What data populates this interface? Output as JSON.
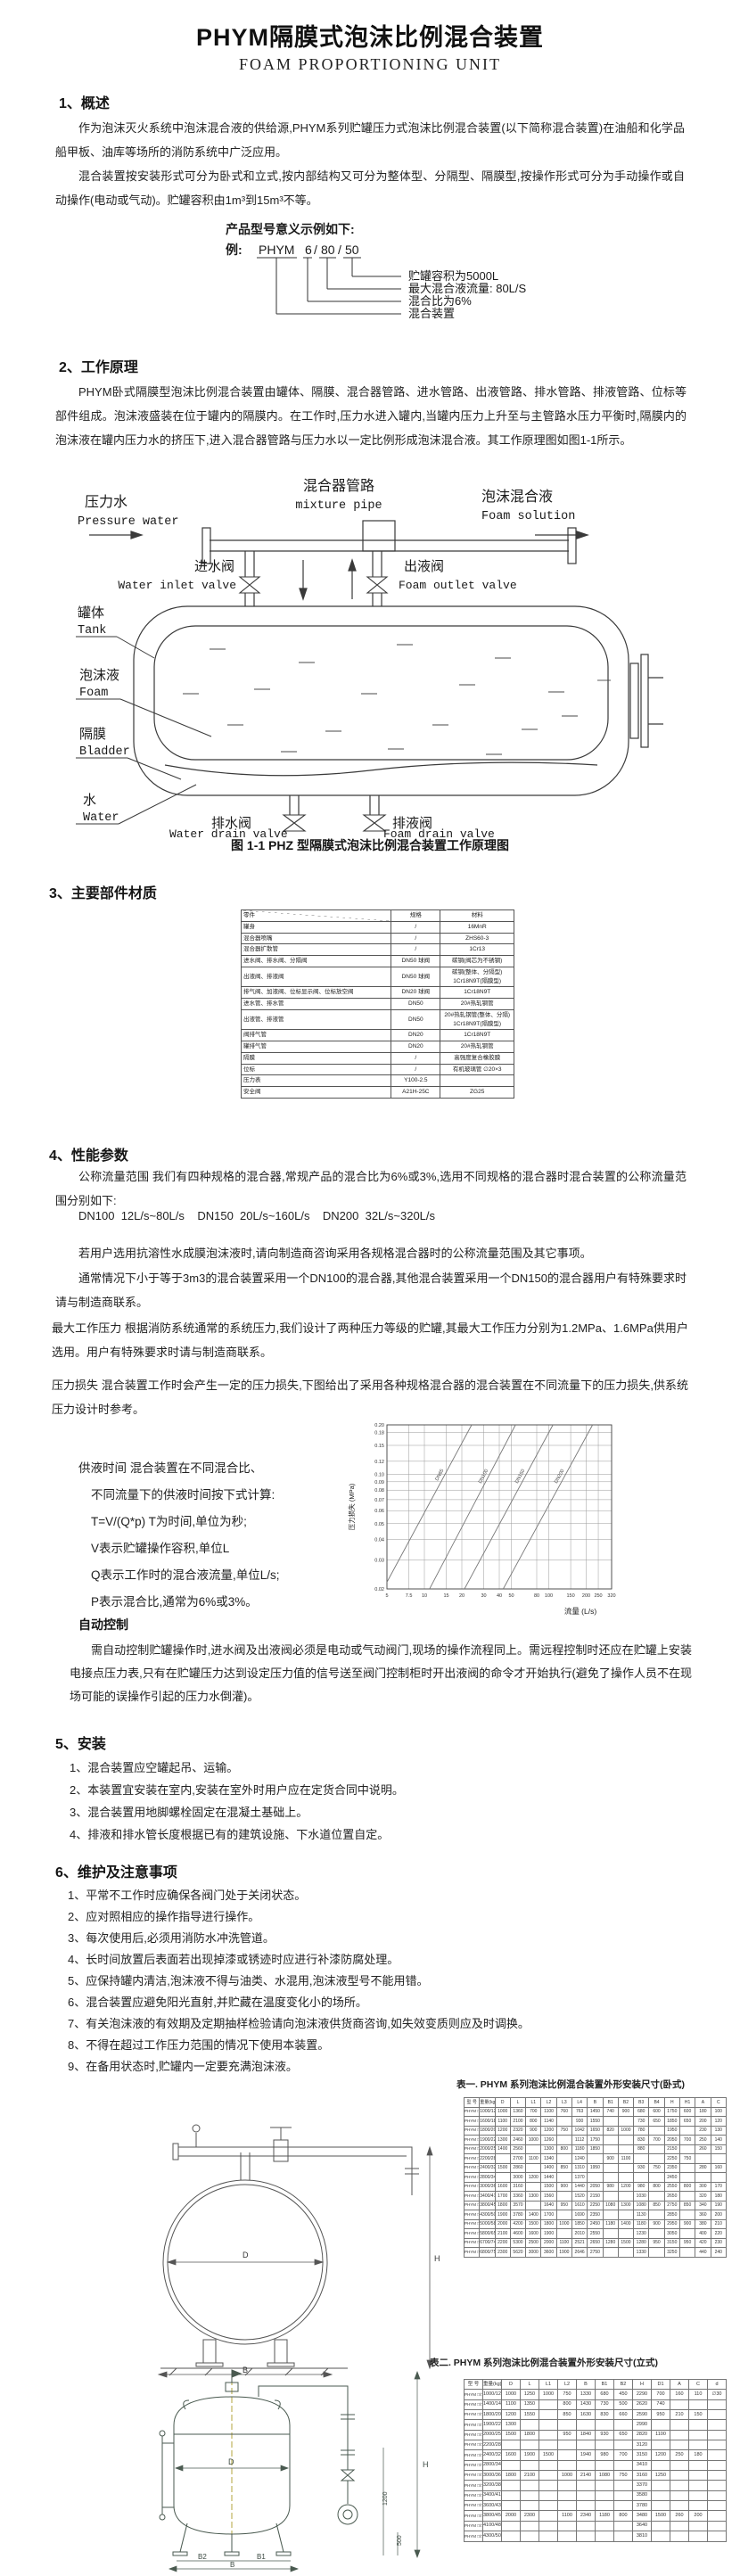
{
  "page": {
    "title": "PHYM隔膜式泡沫比例混合装置",
    "subtitle": "FOAM PROPORTIONING UNIT"
  },
  "overview": {
    "heading": "1、概述",
    "para1": "作为泡沫灭火系统中泡沫混合液的供给源,PHYM系列贮罐压力式泡沫比例混合装置(以下简称混合装置)在油船和化学品船甲板、油库等场所的消防系统中广泛应用。",
    "para2": "混合装置按安装形式可分为卧式和立式,按内部结构又可分为整体型、分隔型、隔膜型,按操作形式可分为手动操作或自动操作(电动或气动)。贮罐容积由1m³到15m³不等。"
  },
  "model_example": {
    "intro": "产品型号意义示例如下:",
    "example_prefix": "例:",
    "code_parts": [
      "PHYM",
      "6",
      "80",
      "50"
    ],
    "slash": "/",
    "labels": [
      "贮罐容积为5000L",
      "最大混合液流量: 80L/S",
      "混合比为6%",
      "混合装置"
    ]
  },
  "working_principle": {
    "heading": "2、工作原理",
    "para": "PHYM卧式隔膜型泡沫比例混合装置由罐体、隔膜、混合器管路、进水管路、出液管路、排水管路、排液管路、位标等部件组成。泡沫液盛装在位于罐内的隔膜内。在工作时,压力水进入罐内,当罐内压力上升至与主管路水压力平衡时,隔膜内的泡沫液在罐内压力水的挤压下,进入混合器管路与压力水以一定比例形成泡沫混合液。其工作原理图如图1-1所示。",
    "caption": "图 1-1 PHZ 型隔膜式泡沫比例混合装置工作原理图",
    "diagram": {
      "mixture_pipe_cn": "混合器管路",
      "mixture_pipe_en": "mixture pipe",
      "pressure_water_cn": "压力水",
      "pressure_water_en": "Pressure water",
      "foam_solution_cn": "泡沫混合液",
      "foam_solution_en": "Foam solution",
      "water_inlet_cn": "进水阀",
      "water_inlet_en": "Water inlet valve",
      "foam_outlet_cn": "出液阀",
      "foam_outlet_en": "Foam outlet valve",
      "tank_cn": "罐体",
      "tank_en": "Tank",
      "foam_cn": "泡沫液",
      "foam_en": "Foam",
      "bladder_cn": "隔膜",
      "bladder_en": "Bladder",
      "water_cn": "水",
      "water_en": "Water",
      "water_drain_cn": "排水阀",
      "water_drain_en": "Water drain valve",
      "foam_drain_cn": "排液阀",
      "foam_drain_en": "Foam drain valve"
    }
  },
  "materials": {
    "heading": "3、主要部件材质",
    "table": {
      "headers": [
        "零件",
        "规格",
        "材料"
      ],
      "rows": [
        [
          "罐身",
          "/",
          "16MnR"
        ],
        [
          "混合器喷嘴",
          "/",
          "ZHS60-3"
        ],
        [
          "混合器扩散管",
          "/",
          "1Cr13"
        ],
        [
          "进水阀、排水阀、分隔阀",
          "DN50 球阀",
          "碳钢(阀芯为不锈钢)"
        ],
        [
          "出液阀、排液阀",
          "DN50 球阀",
          "碳钢(整体、分隔型) 1Cr18N9T(隔膜型)"
        ],
        [
          "排气阀、加液阀、位标显示阀、位标放空阀",
          "DN20 球阀",
          "1Cr18N9T"
        ],
        [
          "进水管、排水管",
          "DN50",
          "20#热轧钢管"
        ],
        [
          "出液管、排液管",
          "DN50",
          "20#热轧钢管(整体、分隔) 1Cr18N9T(隔膜型)"
        ],
        [
          "阀排气管",
          "DN20",
          "1Cr18N9T"
        ],
        [
          "罐排气管",
          "DN20",
          "20#热轧钢管"
        ],
        [
          "隔膜",
          "/",
          "高强度复合橡胶膜"
        ],
        [
          "位标",
          "/",
          "有机玻璃管 ∅20×3"
        ],
        [
          "压力表",
          "Y100-2.5",
          ""
        ],
        [
          "安全阀",
          "A21H-25C",
          "ZG25"
        ]
      ]
    }
  },
  "performance": {
    "heading": "4、性能参数",
    "para_flow": "公称流量范围  我们有四种规格的混合器,常规产品的混合比为6%或3%,选用不同规格的混合器时混合装置的公称流量范围分别如下:",
    "flow_specs": "DN100  12L/s~80L/s    DN150  20L/s~160L/s    DN200  32L/s~320L/s",
    "para_note1": "若用户选用抗溶性水成膜泡沫液时,请向制造商咨询采用各规格混合器时的公称流量范围及其它事项。",
    "para_note2": "通常情况下小于等于3m3的混合装置采用一个DN100的混合器,其他混合装置采用一个DN150的混合器用户有特殊要求时请与制造商联系。",
    "para_pressure": "最大工作压力 根据消防系统通常的系统压力,我们设计了两种压力等级的贮罐,其最大工作压力分别为1.2MPa、1.6MPa供用户选用。用户有特殊要求时请与制造商联系。",
    "para_loss": "压力损失  混合装置工作时会产生一定的压力损失,下图给出了采用各种规格混合器的混合装置在不同流量下的压力损失,供系统压力设计时参考。",
    "supply_time": [
      "供液时间  混合装置在不同混合比、",
      "不同流量下的供液时间按下式计算:",
      "T=V/(Q*p)    T为时间,单位为秒;",
      "V表示贮罐操作容积,单位L",
      "Q表示工作时的混合液流量,单位L/s;",
      "P表示混合比,通常为6%或3%。"
    ],
    "auto_heading": "自动控制",
    "auto_para": "需自动控制贮罐操作时,进水阀及出液阀必须是电动或气动阀门,现场的操作流程同上。需远程控制时还应在贮罐上安装电接点压力表,只有在贮罐压力达到设定压力值的信号送至阀门控制柜时开出液阀的命令才开始执行(避免了操作人员不在现场可能的误操作引起的压力水倒灌)。"
  },
  "chart_data": {
    "type": "line",
    "title": "",
    "xlabel": "流量 (L/s)",
    "ylabel": "压力损失 (MPa)",
    "x_scale": "log",
    "y_scale": "log",
    "xlim": [
      5,
      320
    ],
    "ylim": [
      0.02,
      0.2
    ],
    "grid": true,
    "x_ticks": [
      5,
      7.5,
      10,
      15,
      20,
      30,
      40,
      50,
      80,
      100,
      150,
      200,
      250,
      320
    ],
    "y_ticks": [
      0.02,
      0.03,
      0.04,
      0.05,
      0.06,
      0.07,
      0.08,
      0.09,
      0.1,
      0.12,
      0.15,
      0.18,
      0.2
    ],
    "series": [
      {
        "name": "DN65",
        "x": [
          5,
          24
        ],
        "y": [
          0.022,
          0.2
        ]
      },
      {
        "name": "DN100",
        "x": [
          11,
          54
        ],
        "y": [
          0.02,
          0.2
        ]
      },
      {
        "name": "DN150",
        "x": [
          21,
          108
        ],
        "y": [
          0.02,
          0.2
        ]
      },
      {
        "name": "DN200",
        "x": [
          43,
          225
        ],
        "y": [
          0.02,
          0.2
        ]
      }
    ]
  },
  "installation": {
    "heading": "5、安装",
    "items": [
      "1、混合装置应空罐起吊、运输。",
      "2、本装置宜安装在室内,安装在室外时用户应在定货合同中说明。",
      "3、混合装置用地脚螺栓固定在混凝土基础上。",
      "4、排液和排水管长度根据已有的建筑设施、下水道位置自定。"
    ]
  },
  "maintenance": {
    "heading": "6、维护及注意事项",
    "items": [
      "1、平常不工作时应确保各阀门处于关闭状态。",
      "2、应对照相应的操作指导进行操作。",
      "3、每次使用后,必须用消防水冲洗管道。",
      "4、长时间放置后表面若出现掉漆或锈迹时应进行补漆防腐处理。",
      "5、应保持罐内清洁,泡沫液不得与油类、水混用,泡沫液型号不能用错。",
      "6、混合装置应避免阳光直射,并贮藏在温度变化小的场所。",
      "7、有关泡沫液的有效期及定期抽样检验请向泡沫液供货商咨询,如失效变质则应及时调换。",
      "8、不得在超过工作压力范围的情况下使用本装置。",
      "9、在备用状态时,贮罐内一定要充满泡沫液。"
    ]
  },
  "table1": {
    "caption": "表一. PHYM 系列泡沫比例混合装置外形安装尺寸(卧式)",
    "headers": [
      "型 号",
      "重量(kg)",
      "D",
      "L",
      "L1",
      "L2",
      "L3",
      "L4",
      "B",
      "B1",
      "B2",
      "B3",
      "B4",
      "H",
      "H1",
      "A",
      "C"
    ],
    "rows": [
      [
        "PHYM □/□/10",
        "1000/1200",
        "1000",
        "1360",
        "700",
        "1100",
        "760",
        "763",
        "1450",
        "740",
        "900",
        "680",
        "600",
        "1750",
        "600",
        "180",
        "100"
      ],
      [
        "PHYM □/□/15",
        "1600/1800",
        "1100",
        "2100",
        "800",
        "1140",
        "",
        "930",
        "1550",
        "",
        "",
        "730",
        "650",
        "1850",
        "650",
        "200",
        "120"
      ],
      [
        "PHYM □/□/20",
        "1800/2000",
        "1200",
        "2320",
        "900",
        "1200",
        "750",
        "1042",
        "1650",
        "820",
        "1000",
        "780",
        "",
        "1950",
        "",
        "230",
        "130"
      ],
      [
        "PHYM □/□/25",
        "1900/2200",
        "1300",
        "2460",
        "1000",
        "1260",
        "",
        "1112",
        "1750",
        "",
        "",
        "830",
        "700",
        "2050",
        "700",
        "250",
        "140"
      ],
      [
        "PHYM □/□/30",
        "2000/2500",
        "1400",
        "2560",
        "",
        "1300",
        "800",
        "1180",
        "1850",
        "",
        "",
        "880",
        "",
        "2150",
        "",
        "260",
        "150"
      ],
      [
        "PHYM □/□/35",
        "2200/2800",
        "",
        "2700",
        "1100",
        "1340",
        "",
        "1240",
        "",
        "900",
        "1100",
        "",
        "",
        "2250",
        "750",
        "",
        ""
      ],
      [
        "PHYM □/□/40",
        "2400/3200",
        "1500",
        "2860",
        "",
        "1400",
        "850",
        "1310",
        "1950",
        "",
        "",
        "930",
        "750",
        "2350",
        "",
        "280",
        "160"
      ],
      [
        "PHYM □/□/45",
        "2800/3400",
        "",
        "3000",
        "1200",
        "1440",
        "",
        "1370",
        "",
        "",
        "",
        "",
        "",
        "2450",
        "",
        "",
        ""
      ],
      [
        "PHYM □/□/50",
        "3000/3600",
        "1600",
        "3160",
        "",
        "1500",
        "900",
        "1440",
        "2050",
        "980",
        "1200",
        "980",
        "800",
        "2550",
        "800",
        "300",
        "170"
      ],
      [
        "PHYM □/□/60",
        "3400/4100",
        "1700",
        "3360",
        "1300",
        "1560",
        "",
        "1520",
        "2150",
        "",
        "",
        "1030",
        "",
        "2650",
        "",
        "320",
        "180"
      ],
      [
        "PHYM □/□/70",
        "3800/4500",
        "1800",
        "3570",
        "",
        "1640",
        "950",
        "1610",
        "2250",
        "1080",
        "1300",
        "1080",
        "850",
        "2750",
        "850",
        "340",
        "190"
      ],
      [
        "PHYM □/□/80",
        "4300/5000",
        "1900",
        "3780",
        "1400",
        "1700",
        "",
        "1690",
        "2350",
        "",
        "",
        "1130",
        "",
        "2850",
        "",
        "360",
        "200"
      ],
      [
        "PHYM □/□/100",
        "5000/5800",
        "2000",
        "4200",
        "1500",
        "1800",
        "1000",
        "1850",
        "2450",
        "1180",
        "1400",
        "1180",
        "900",
        "2950",
        "900",
        "380",
        "210"
      ],
      [
        "PHYM □/□/120",
        "5800/6500",
        "2100",
        "4600",
        "1600",
        "1900",
        "",
        "2010",
        "2550",
        "",
        "",
        "1230",
        "",
        "3050",
        "",
        "400",
        "220"
      ],
      [
        "PHYM □/□/145",
        "6700/7400",
        "2200",
        "5300",
        "2500",
        "2000",
        "1100",
        "2521",
        "2650",
        "1280",
        "1500",
        "1280",
        "950",
        "3150",
        "950",
        "420",
        "230"
      ],
      [
        "PHYM □/□/150",
        "6800/7500",
        "2300",
        "5620",
        "3000",
        "3600",
        "1900",
        "2646",
        "2750",
        "",
        "",
        "1330",
        "",
        "3250",
        "",
        "440",
        "240"
      ]
    ]
  },
  "table2": {
    "caption": "表二. PHYM 系列泡沫比例混合装置外形安装尺寸(立式)",
    "headers": [
      "型 号",
      "重量(kg)",
      "D",
      "L",
      "L1",
      "L2",
      "B",
      "B1",
      "B2",
      "H",
      "D1",
      "A",
      "C",
      "d"
    ],
    "rows": [
      [
        "PHYM □/□/10",
        "1000/1200",
        "1000",
        "1250",
        "1000",
        "750",
        "1330",
        "680",
        "450",
        "2290",
        "700",
        "160",
        "110",
        "∅30"
      ],
      [
        "PHYM □/□/15",
        "1400/1400",
        "1100",
        "1350",
        "",
        "800",
        "1430",
        "730",
        "500",
        "2620",
        "740",
        "",
        "",
        ""
      ],
      [
        "PHYM □/□/20",
        "1800/2000",
        "1200",
        "1550",
        "",
        "850",
        "1630",
        "830",
        "660",
        "2590",
        "950",
        "210",
        "150",
        ""
      ],
      [
        "PHYM □/□/25",
        "1900/2200",
        "1300",
        "",
        "",
        "",
        "",
        "",
        "",
        "2990",
        "",
        "",
        "",
        ""
      ],
      [
        "PHYM □/□/30",
        "2000/2500",
        "1500",
        "1800",
        "",
        "950",
        "1840",
        "930",
        "650",
        "2820",
        "1100",
        "",
        "",
        ""
      ],
      [
        "PHYM □/□/35",
        "2200/2800",
        "",
        "",
        "",
        "",
        "",
        "",
        "",
        "3120",
        "",
        "",
        "",
        ""
      ],
      [
        "PHYM □/□/40",
        "2400/3200",
        "1600",
        "1900",
        "1500",
        "",
        "1940",
        "980",
        "700",
        "3150",
        "1200",
        "250",
        "180",
        ""
      ],
      [
        "PHYM □/□/45",
        "2800/3400",
        "",
        "",
        "",
        "",
        "",
        "",
        "",
        "3410",
        "",
        "",
        "",
        ""
      ],
      [
        "PHYM □/□/50",
        "3000/3600",
        "1800",
        "2100",
        "",
        "1000",
        "2140",
        "1080",
        "750",
        "3160",
        "1250",
        "",
        "",
        ""
      ],
      [
        "PHYM □/□/55",
        "3200/3800",
        "",
        "",
        "",
        "",
        "",
        "",
        "",
        "3370",
        "",
        "",
        "",
        ""
      ],
      [
        "PHYM □/□/60",
        "3400/4100",
        "",
        "",
        "",
        "",
        "",
        "",
        "",
        "3580",
        "",
        "",
        "",
        ""
      ],
      [
        "PHYM □/□/65",
        "3600/4300",
        "",
        "",
        "",
        "",
        "",
        "",
        "",
        "3780",
        "",
        "",
        "",
        ""
      ],
      [
        "PHYM □/□/70",
        "3800/4500",
        "2000",
        "2300",
        "",
        "1100",
        "2340",
        "1180",
        "800",
        "3480",
        "1500",
        "260",
        "200",
        ""
      ],
      [
        "PHYM □/□/75",
        "4100/4800",
        "",
        "",
        "",
        "",
        "",
        "",
        "",
        "3640",
        "",
        "",
        "",
        ""
      ],
      [
        "PHYM □/□/80",
        "4300/5000",
        "",
        "",
        "",
        "",
        "",
        "",
        "",
        "3810",
        "",
        "",
        "",
        ""
      ]
    ]
  },
  "drawing1": {
    "d": "D",
    "b": "B",
    "h": "H"
  },
  "drawing2": {
    "d": "D",
    "h": "H",
    "v1200": "1200",
    "v500": "500",
    "b2": "B2",
    "b1": "B1",
    "b": "B"
  }
}
